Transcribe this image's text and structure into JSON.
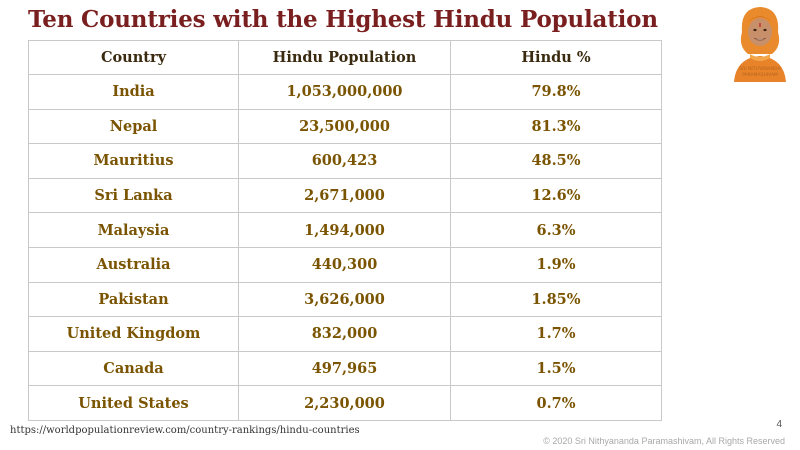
{
  "slide": {
    "title": "Ten Countries with the Highest Hindu Population",
    "source": "https://worldpopulationreview.com/country-rankings/hindu-countries",
    "page_number": "4",
    "copyright": "© 2020 Sri Nithyananda Paramashivam, All Rights Reserved"
  },
  "logo": {
    "caption_line1": "SRI NITHYANANDA",
    "caption_line2": "PARAMASHIVAM"
  },
  "table": {
    "headers": [
      "Country",
      "Hindu Population",
      "Hindu %"
    ],
    "rows": [
      [
        "India",
        "1,053,000,000",
        "79.8%"
      ],
      [
        "Nepal",
        "23,500,000",
        "81.3%"
      ],
      [
        "Mauritius",
        "600,423",
        "48.5%"
      ],
      [
        "Sri Lanka",
        "2,671,000",
        "12.6%"
      ],
      [
        "Malaysia",
        "1,494,000",
        "6.3%"
      ],
      [
        "Australia",
        "440,300",
        "1.9%"
      ],
      [
        "Pakistan",
        "3,626,000",
        "1.85%"
      ],
      [
        "United Kingdom",
        "832,000",
        "1.7%"
      ],
      [
        "Canada",
        "497,965",
        "1.5%"
      ],
      [
        "United States",
        "2,230,000",
        "0.7%"
      ]
    ]
  },
  "colors": {
    "title": "#7a1f1f",
    "cell_text": "#7a5400",
    "header_text": "#3a2a10",
    "logo_saffron": "#e8832a"
  }
}
